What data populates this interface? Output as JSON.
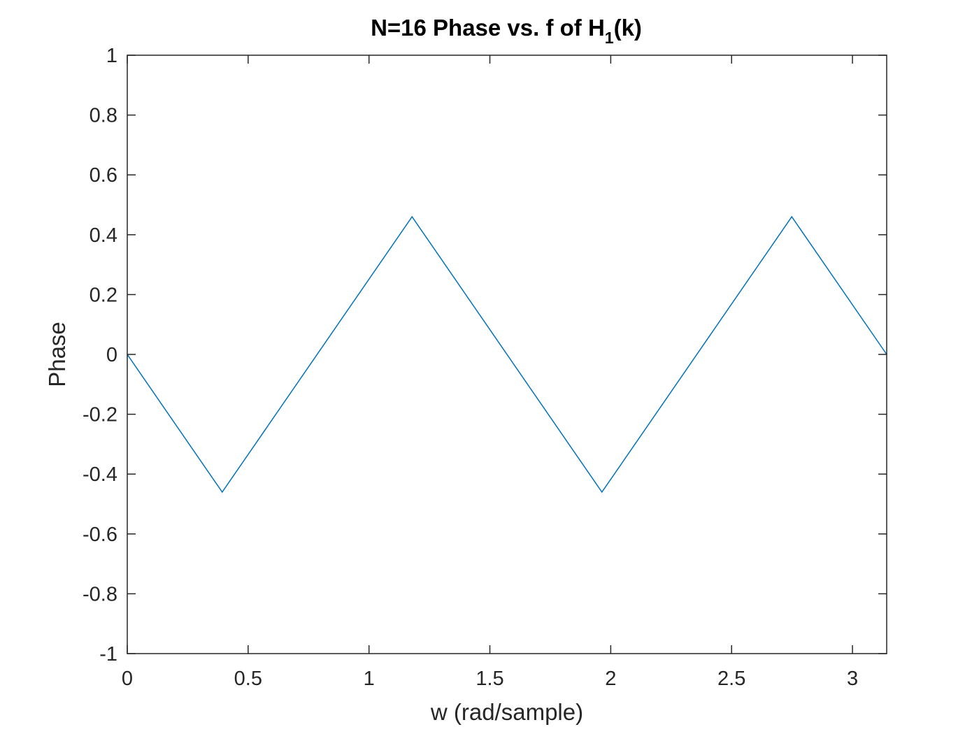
{
  "chart_data": {
    "type": "line",
    "title": {
      "main": "N=16 Phase vs. f of H",
      "subscript": "1",
      "suffix": "(k)"
    },
    "xlabel": "w (rad/sample)",
    "ylabel": "Phase",
    "xlim": [
      0,
      3.1416
    ],
    "ylim": [
      -1,
      1
    ],
    "xticks": [
      0,
      0.5,
      1,
      1.5,
      2,
      2.5,
      3
    ],
    "xtick_labels": [
      "0",
      "0.5",
      "1",
      "1.5",
      "2",
      "2.5",
      "3"
    ],
    "yticks": [
      -1,
      -0.8,
      -0.6,
      -0.4,
      -0.2,
      0,
      0.2,
      0.4,
      0.6,
      0.8,
      1
    ],
    "ytick_labels": [
      "-1",
      "-0.8",
      "-0.6",
      "-0.4",
      "-0.2",
      "0",
      "0.2",
      "0.4",
      "0.6",
      "0.8",
      "1"
    ],
    "grid": false,
    "series": [
      {
        "color": "#0072BD",
        "x": [
          0,
          0.3927,
          1.1781,
          1.9635,
          2.7489,
          3.1416
        ],
        "y": [
          0,
          -0.4602,
          0.4602,
          -0.4602,
          0.4602,
          0
        ]
      }
    ]
  }
}
